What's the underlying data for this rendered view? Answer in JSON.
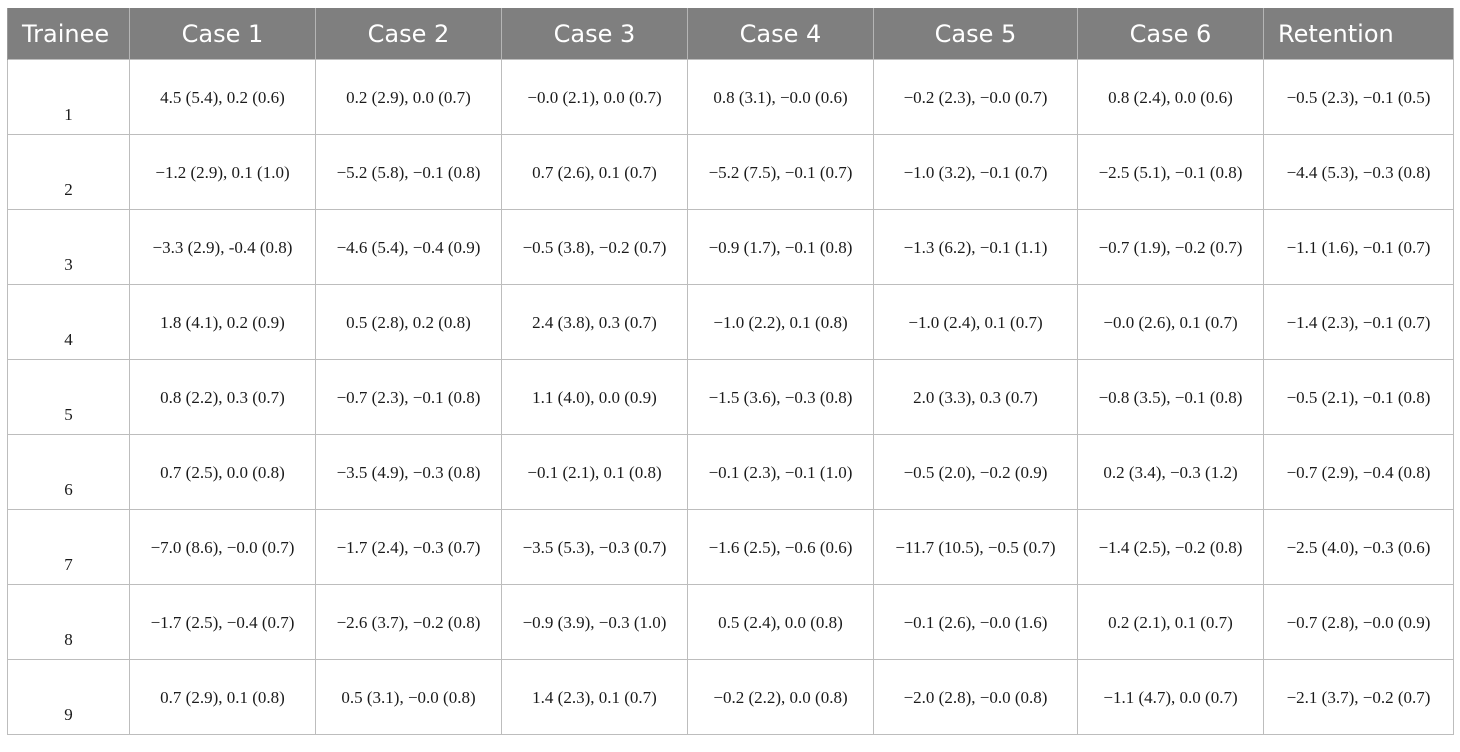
{
  "table": {
    "headers": [
      "Trainee",
      "Case 1",
      "Case 2",
      "Case 3",
      "Case 4",
      "Case 5",
      "Case 6",
      "Retention"
    ],
    "rows": [
      {
        "trainee": "1",
        "cells": [
          "4.5 (5.4), 0.2 (0.6)",
          "0.2 (2.9), 0.0 (0.7)",
          "−0.0 (2.1), 0.0 (0.7)",
          "0.8 (3.1), −0.0 (0.6)",
          "−0.2 (2.3), −0.0 (0.7)",
          "0.8 (2.4), 0.0 (0.6)",
          "−0.5 (2.3), −0.1 (0.5)"
        ]
      },
      {
        "trainee": "2",
        "cells": [
          "−1.2 (2.9), 0.1 (1.0)",
          "−5.2 (5.8), −0.1 (0.8)",
          "0.7 (2.6), 0.1 (0.7)",
          "−5.2 (7.5), −0.1 (0.7)",
          "−1.0 (3.2), −0.1 (0.7)",
          "−2.5 (5.1), −0.1 (0.8)",
          "−4.4 (5.3), −0.3 (0.8)"
        ]
      },
      {
        "trainee": "3",
        "cells": [
          "−3.3 (2.9), -0.4 (0.8)",
          "−4.6 (5.4), −0.4 (0.9)",
          "−0.5 (3.8), −0.2 (0.7)",
          "−0.9 (1.7), −0.1 (0.8)",
          "−1.3 (6.2), −0.1 (1.1)",
          "−0.7 (1.9), −0.2 (0.7)",
          "−1.1 (1.6), −0.1 (0.7)"
        ]
      },
      {
        "trainee": "4",
        "cells": [
          "1.8 (4.1), 0.2 (0.9)",
          "0.5 (2.8), 0.2 (0.8)",
          "2.4 (3.8), 0.3 (0.7)",
          "−1.0 (2.2), 0.1 (0.8)",
          "−1.0 (2.4), 0.1 (0.7)",
          "−0.0 (2.6), 0.1 (0.7)",
          "−1.4 (2.3), −0.1 (0.7)"
        ]
      },
      {
        "trainee": "5",
        "cells": [
          "0.8 (2.2), 0.3 (0.7)",
          "−0.7 (2.3), −0.1 (0.8)",
          "1.1 (4.0), 0.0 (0.9)",
          "−1.5 (3.6), −0.3 (0.8)",
          "2.0 (3.3), 0.3 (0.7)",
          "−0.8 (3.5), −0.1 (0.8)",
          "−0.5 (2.1), −0.1 (0.8)"
        ]
      },
      {
        "trainee": "6",
        "cells": [
          "0.7 (2.5), 0.0 (0.8)",
          "−3.5 (4.9), −0.3 (0.8)",
          "−0.1 (2.1), 0.1 (0.8)",
          "−0.1 (2.3), −0.1 (1.0)",
          "−0.5 (2.0), −0.2 (0.9)",
          "0.2 (3.4), −0.3 (1.2)",
          "−0.7 (2.9), −0.4 (0.8)"
        ]
      },
      {
        "trainee": "7",
        "cells": [
          "−7.0 (8.6), −0.0 (0.7)",
          "−1.7 (2.4), −0.3 (0.7)",
          "−3.5 (5.3), −0.3 (0.7)",
          "−1.6 (2.5), −0.6 (0.6)",
          "−11.7 (10.5), −0.5 (0.7)",
          "−1.4 (2.5), −0.2 (0.8)",
          "−2.5 (4.0), −0.3 (0.6)"
        ]
      },
      {
        "trainee": "8",
        "cells": [
          "−1.7 (2.5), −0.4 (0.7)",
          "−2.6 (3.7), −0.2 (0.8)",
          "−0.9 (3.9), −0.3 (1.0)",
          "0.5 (2.4), 0.0 (0.8)",
          "−0.1 (2.6), −0.0 (1.6)",
          "0.2 (2.1), 0.1 (0.7)",
          "−0.7 (2.8), −0.0 (0.9)"
        ]
      },
      {
        "trainee": "9",
        "cells": [
          "0.7 (2.9), 0.1 (0.8)",
          "0.5 (3.1), −0.0 (0.8)",
          "1.4 (2.3), 0.1 (0.7)",
          "−0.2 (2.2), 0.0 (0.8)",
          "−2.0 (2.8), −0.0 (0.8)",
          "−1.1 (4.7), 0.0 (0.7)",
          "−2.1 (3.7), −0.2 (0.7)"
        ]
      }
    ]
  }
}
